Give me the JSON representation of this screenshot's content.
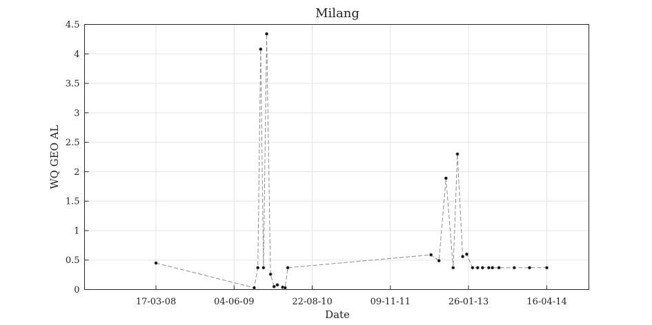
{
  "chart_data": {
    "type": "scatter",
    "title": "Milang",
    "xlabel": "Date",
    "ylabel": "WQ GEO AL",
    "x_ticks": [
      "17-03-08",
      "04-06-09",
      "22-08-10",
      "09-11-11",
      "26-01-13",
      "16-04-14"
    ],
    "x_tick_dates": [
      "2008-03-17",
      "2009-06-04",
      "2010-08-22",
      "2011-11-09",
      "2013-01-26",
      "2014-04-16"
    ],
    "xlim": [
      "2007-02-05",
      "2014-12-11"
    ],
    "ylim": [
      0,
      4.5
    ],
    "y_ticks": [
      "0",
      "0.5",
      "1",
      "1.5",
      "2",
      "2.5",
      "3",
      "3.5",
      "4",
      "4.5"
    ],
    "grid": true,
    "line_style": "dashed",
    "series": [
      {
        "points": [
          {
            "x": "2008-03-17",
            "y": 0.45
          },
          {
            "x": "2009-09-26",
            "y": 0.03
          },
          {
            "x": "2009-10-17",
            "y": 0.37
          },
          {
            "x": "2009-11-02",
            "y": 4.08
          },
          {
            "x": "2009-11-18",
            "y": 0.37
          },
          {
            "x": "2009-12-06",
            "y": 4.34
          },
          {
            "x": "2009-12-28",
            "y": 0.26
          },
          {
            "x": "2010-01-17",
            "y": 0.05
          },
          {
            "x": "2010-02-05",
            "y": 0.08
          },
          {
            "x": "2010-03-07",
            "y": 0.04
          },
          {
            "x": "2010-03-21",
            "y": 0.03
          },
          {
            "x": "2010-04-05",
            "y": 0.37
          },
          {
            "x": "2012-06-27",
            "y": 0.59
          },
          {
            "x": "2012-08-11",
            "y": 0.49
          },
          {
            "x": "2012-09-20",
            "y": 1.89
          },
          {
            "x": "2012-10-31",
            "y": 0.37
          },
          {
            "x": "2012-11-24",
            "y": 2.3
          },
          {
            "x": "2012-12-24",
            "y": 0.56
          },
          {
            "x": "2013-01-16",
            "y": 0.6
          },
          {
            "x": "2013-02-18",
            "y": 0.37
          },
          {
            "x": "2013-03-19",
            "y": 0.37
          },
          {
            "x": "2013-04-16",
            "y": 0.37
          },
          {
            "x": "2013-05-21",
            "y": 0.37
          },
          {
            "x": "2013-06-11",
            "y": 0.37
          },
          {
            "x": "2013-07-18",
            "y": 0.37
          },
          {
            "x": "2013-10-13",
            "y": 0.37
          },
          {
            "x": "2014-01-08",
            "y": 0.37
          },
          {
            "x": "2014-04-16",
            "y": 0.37
          }
        ]
      }
    ]
  }
}
